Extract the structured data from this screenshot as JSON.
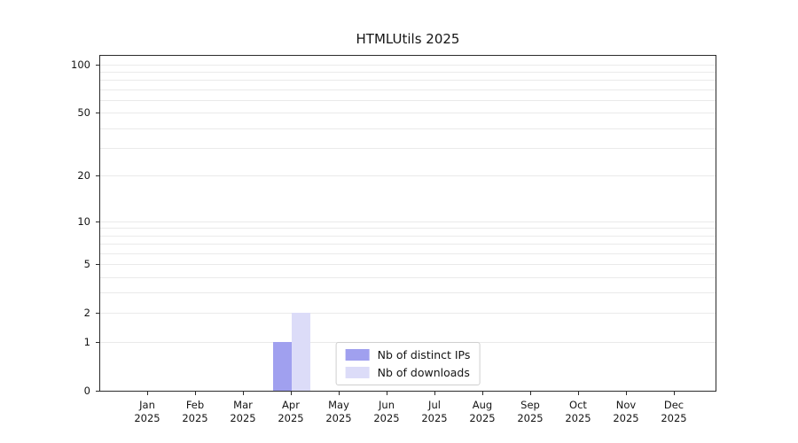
{
  "chart_data": {
    "type": "bar",
    "title": "HTMLUtils 2025",
    "categories": [
      "Jan 2025",
      "Feb 2025",
      "Mar 2025",
      "Apr 2025",
      "May 2025",
      "Jun 2025",
      "Jul 2025",
      "Aug 2025",
      "Sep 2025",
      "Oct 2025",
      "Nov 2025",
      "Dec 2025"
    ],
    "series": [
      {
        "key": "distinct-ips",
        "name": "Nb of distinct IPs",
        "color": "#a0a0ef",
        "values": [
          0,
          0,
          0,
          1,
          0,
          0,
          0,
          0,
          0,
          0,
          0,
          0
        ]
      },
      {
        "key": "downloads",
        "name": "Nb of downloads",
        "color": "#dcdcf8",
        "values": [
          0,
          0,
          0,
          2,
          0,
          0,
          0,
          0,
          0,
          0,
          0,
          0
        ]
      }
    ],
    "yticks": [
      0,
      1,
      2,
      5,
      10,
      20,
      50,
      100
    ],
    "grid_values": [
      1,
      2,
      3,
      4,
      5,
      6,
      7,
      8,
      9,
      10,
      20,
      30,
      40,
      50,
      60,
      70,
      80,
      90,
      100
    ],
    "yscale": "log1p",
    "ylim": [
      0,
      113
    ],
    "xlabel": "",
    "ylabel": "",
    "grid": "horizontal",
    "legend_position": "lower-center-inside"
  }
}
